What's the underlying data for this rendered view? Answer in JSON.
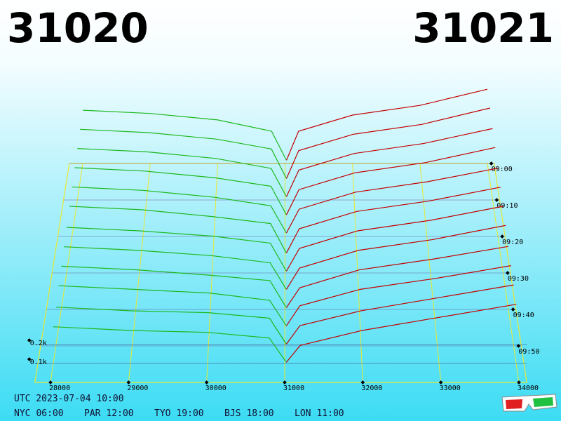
{
  "chart_data": {
    "type": "depth3d",
    "best_bid": 31020,
    "best_ask": 31021,
    "bid_color": "#1db81d",
    "ask_color": "#c40000",
    "floor_color": "#e8e830",
    "bid_prices": [
      28000,
      29000,
      30000,
      30800
    ],
    "ask_prices": [
      31200,
      32000,
      33000,
      34000
    ],
    "xlim": [
      27800,
      34100
    ],
    "xticks": [
      28000,
      29000,
      30000,
      31000,
      32000,
      33000,
      34000
    ],
    "tlim": [
      0,
      60
    ],
    "tticks": [
      {
        "value": 0,
        "label": "09:00"
      },
      {
        "value": 10,
        "label": "09:10"
      },
      {
        "value": 20,
        "label": "09:20"
      },
      {
        "value": 30,
        "label": "09:30"
      },
      {
        "value": 40,
        "label": "09:40"
      },
      {
        "value": 50,
        "label": "09:50"
      }
    ],
    "ylim": [
      0,
      1
    ],
    "yticks": [
      {
        "value": 0.1,
        "label": "0.1k"
      },
      {
        "value": 0.2,
        "label": "0.2k"
      }
    ],
    "snapshots": [
      {
        "t": 0,
        "bids": [
          0.33,
          0.31,
          0.27,
          0.2,
          0.02
        ],
        "asks": [
          0.02,
          0.2,
          0.3,
          0.36,
          0.46
        ]
      },
      {
        "t": 5,
        "bids": [
          0.32,
          0.3,
          0.26,
          0.2,
          0.02
        ],
        "asks": [
          0.02,
          0.19,
          0.29,
          0.35,
          0.45
        ]
      },
      {
        "t": 10,
        "bids": [
          0.31,
          0.29,
          0.25,
          0.19,
          0.02
        ],
        "asks": [
          0.02,
          0.18,
          0.28,
          0.34,
          0.43
        ]
      },
      {
        "t": 15,
        "bids": [
          0.3,
          0.28,
          0.24,
          0.19,
          0.02
        ],
        "asks": [
          0.02,
          0.17,
          0.27,
          0.33,
          0.42
        ]
      },
      {
        "t": 20,
        "bids": [
          0.29,
          0.27,
          0.23,
          0.18,
          0.02
        ],
        "asks": [
          0.02,
          0.16,
          0.26,
          0.32,
          0.4
        ]
      },
      {
        "t": 25,
        "bids": [
          0.28,
          0.26,
          0.22,
          0.18,
          0.01
        ],
        "asks": [
          0.01,
          0.15,
          0.25,
          0.31,
          0.39
        ]
      },
      {
        "t": 30,
        "bids": [
          0.26,
          0.24,
          0.21,
          0.17,
          0.01
        ],
        "asks": [
          0.01,
          0.14,
          0.24,
          0.3,
          0.38
        ]
      },
      {
        "t": 35,
        "bids": [
          0.25,
          0.23,
          0.2,
          0.16,
          0.01
        ],
        "asks": [
          0.01,
          0.13,
          0.23,
          0.29,
          0.37
        ]
      },
      {
        "t": 40,
        "bids": [
          0.24,
          0.22,
          0.19,
          0.16,
          0.01
        ],
        "asks": [
          0.01,
          0.12,
          0.22,
          0.28,
          0.35
        ]
      },
      {
        "t": 45,
        "bids": [
          0.23,
          0.21,
          0.19,
          0.15,
          0.01
        ],
        "asks": [
          0.01,
          0.12,
          0.21,
          0.27,
          0.34
        ]
      },
      {
        "t": 50,
        "bids": [
          0.21,
          0.19,
          0.18,
          0.15,
          0.01
        ],
        "asks": [
          0.01,
          0.11,
          0.19,
          0.26,
          0.33
        ]
      },
      {
        "t": 55,
        "bids": [
          0.2,
          0.18,
          0.17,
          0.14,
          0.01
        ],
        "asks": [
          0.01,
          0.1,
          0.18,
          0.25,
          0.32
        ]
      }
    ]
  },
  "footer": {
    "utc": "UTC 2023-07-04 10:00",
    "clocks": [
      {
        "city": "NYC",
        "time": "06:00"
      },
      {
        "city": "PAR",
        "time": "12:00"
      },
      {
        "city": "TYO",
        "time": "19:00"
      },
      {
        "city": "BJS",
        "time": "18:00"
      },
      {
        "city": "LON",
        "time": "11:00"
      }
    ]
  }
}
